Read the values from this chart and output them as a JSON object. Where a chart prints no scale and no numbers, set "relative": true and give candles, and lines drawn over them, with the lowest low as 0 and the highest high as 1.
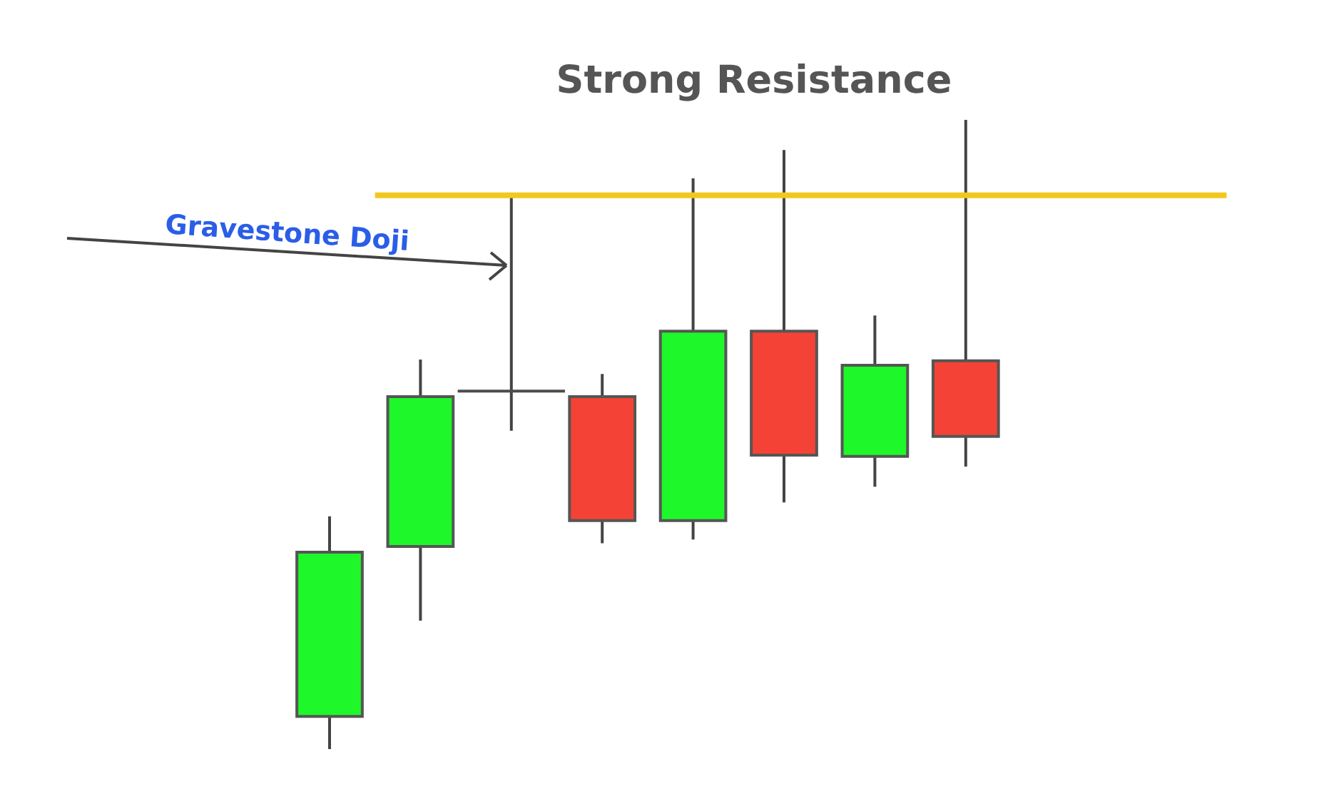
{
  "chart_data": {
    "type": "candlestick",
    "relative": true,
    "categories": [
      null,
      null,
      null,
      null,
      null,
      null,
      null,
      null
    ],
    "ohlc": [
      [
        0.052,
        0.37,
        0,
        0.313
      ],
      [
        0.322,
        0.619,
        0.204,
        0.56
      ],
      [
        0.569,
        0.878,
        0.506,
        0.569
      ],
      [
        0.56,
        0.596,
        0.327,
        0.363
      ],
      [
        0.363,
        0.907,
        0.333,
        0.664
      ],
      [
        0.664,
        0.952,
        0.392,
        0.467
      ],
      [
        0.465,
        0.689,
        0.417,
        0.61
      ],
      [
        0.617,
        1,
        0.449,
        0.497
      ]
    ],
    "colors": [
      "#1ef72a",
      "#1ef72a",
      "#4d4d4d",
      "#f44336",
      "#1ef72a",
      "#f44336",
      "#1ef72a",
      "#f44336"
    ],
    "ref_lines": [
      {
        "axis": "y",
        "value": 0.88,
        "label": "Strong Resistance",
        "color": "#f2c81e"
      }
    ],
    "annotations": [
      "Gravestone Doji"
    ]
  }
}
